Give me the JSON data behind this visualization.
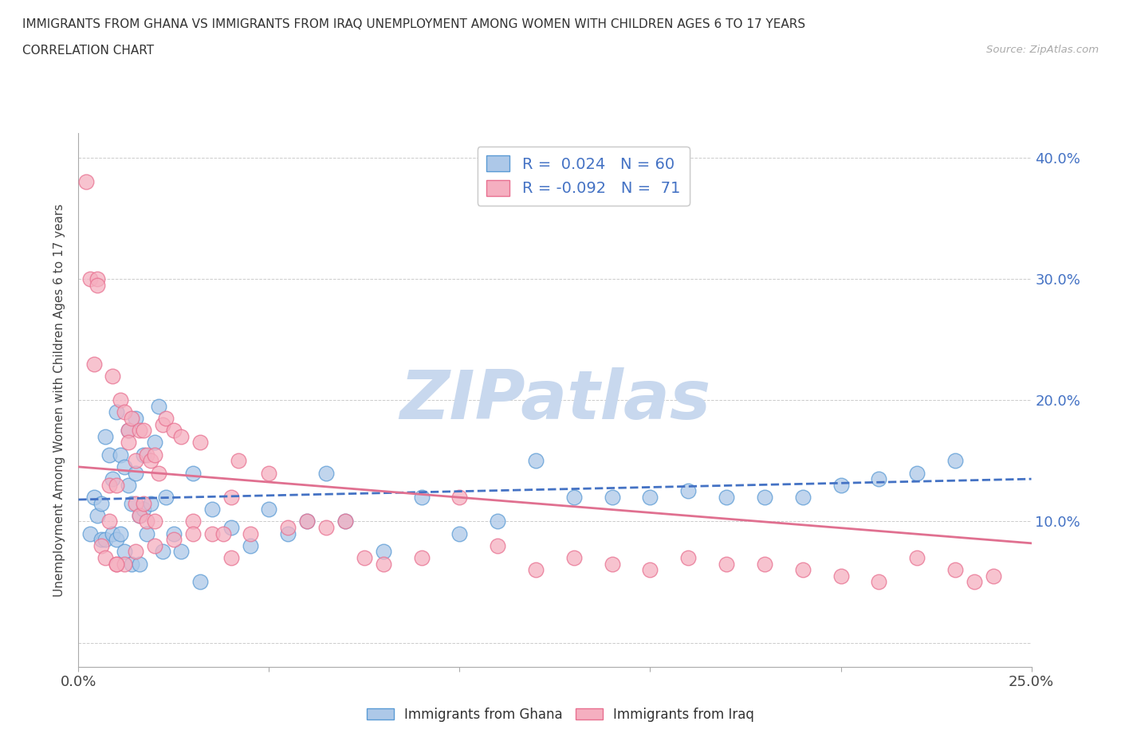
{
  "title_line1": "IMMIGRANTS FROM GHANA VS IMMIGRANTS FROM IRAQ UNEMPLOYMENT AMONG WOMEN WITH CHILDREN AGES 6 TO 17 YEARS",
  "title_line2": "CORRELATION CHART",
  "source_text": "Source: ZipAtlas.com",
  "ylabel": "Unemployment Among Women with Children Ages 6 to 17 years",
  "xlim": [
    0.0,
    0.25
  ],
  "ylim": [
    -0.02,
    0.42
  ],
  "yticks": [
    0.0,
    0.1,
    0.2,
    0.3,
    0.4
  ],
  "xticks": [
    0.0,
    0.05,
    0.1,
    0.15,
    0.2,
    0.25
  ],
  "ytick_labels": [
    "",
    "10.0%",
    "20.0%",
    "30.0%",
    "40.0%"
  ],
  "xtick_labels": [
    "0.0%",
    "",
    "",
    "",
    "",
    "25.0%"
  ],
  "ghana_color": "#adc8e8",
  "iraq_color": "#f5afc0",
  "ghana_edge_color": "#5b9bd5",
  "iraq_edge_color": "#e87090",
  "trend_ghana_color": "#4472c4",
  "trend_iraq_color": "#e07090",
  "tick_label_color": "#4472c4",
  "watermark_text": "ZIPatlas",
  "watermark_color": "#c8d8ee",
  "legend_R_ghana": "0.024",
  "legend_N_ghana": "60",
  "legend_R_iraq": "-0.092",
  "legend_N_iraq": "71",
  "ghana_x": [
    0.003,
    0.004,
    0.005,
    0.006,
    0.006,
    0.007,
    0.007,
    0.008,
    0.009,
    0.009,
    0.01,
    0.01,
    0.011,
    0.011,
    0.012,
    0.012,
    0.013,
    0.013,
    0.014,
    0.014,
    0.015,
    0.015,
    0.016,
    0.016,
    0.017,
    0.017,
    0.018,
    0.019,
    0.02,
    0.021,
    0.022,
    0.023,
    0.025,
    0.027,
    0.03,
    0.032,
    0.035,
    0.04,
    0.045,
    0.05,
    0.055,
    0.06,
    0.065,
    0.07,
    0.08,
    0.09,
    0.1,
    0.11,
    0.12,
    0.13,
    0.14,
    0.15,
    0.16,
    0.17,
    0.18,
    0.19,
    0.2,
    0.21,
    0.22,
    0.23
  ],
  "ghana_y": [
    0.09,
    0.12,
    0.105,
    0.115,
    0.085,
    0.17,
    0.085,
    0.155,
    0.135,
    0.09,
    0.19,
    0.085,
    0.155,
    0.09,
    0.145,
    0.075,
    0.175,
    0.13,
    0.115,
    0.065,
    0.185,
    0.14,
    0.105,
    0.065,
    0.155,
    0.11,
    0.09,
    0.115,
    0.165,
    0.195,
    0.075,
    0.12,
    0.09,
    0.075,
    0.14,
    0.05,
    0.11,
    0.095,
    0.08,
    0.11,
    0.09,
    0.1,
    0.14,
    0.1,
    0.075,
    0.12,
    0.09,
    0.1,
    0.15,
    0.12,
    0.12,
    0.12,
    0.125,
    0.12,
    0.12,
    0.12,
    0.13,
    0.135,
    0.14,
    0.15
  ],
  "iraq_x": [
    0.002,
    0.003,
    0.004,
    0.005,
    0.005,
    0.006,
    0.007,
    0.008,
    0.008,
    0.009,
    0.01,
    0.01,
    0.011,
    0.012,
    0.012,
    0.013,
    0.013,
    0.014,
    0.015,
    0.015,
    0.016,
    0.016,
    0.017,
    0.017,
    0.018,
    0.018,
    0.019,
    0.02,
    0.02,
    0.021,
    0.022,
    0.023,
    0.025,
    0.027,
    0.03,
    0.032,
    0.035,
    0.038,
    0.04,
    0.042,
    0.045,
    0.05,
    0.055,
    0.06,
    0.065,
    0.07,
    0.075,
    0.08,
    0.09,
    0.1,
    0.11,
    0.12,
    0.13,
    0.14,
    0.15,
    0.16,
    0.17,
    0.18,
    0.19,
    0.2,
    0.21,
    0.22,
    0.23,
    0.235,
    0.24,
    0.01,
    0.015,
    0.02,
    0.025,
    0.03,
    0.04
  ],
  "iraq_y": [
    0.38,
    0.3,
    0.23,
    0.3,
    0.295,
    0.08,
    0.07,
    0.13,
    0.1,
    0.22,
    0.13,
    0.065,
    0.2,
    0.19,
    0.065,
    0.175,
    0.165,
    0.185,
    0.15,
    0.115,
    0.175,
    0.105,
    0.175,
    0.115,
    0.155,
    0.1,
    0.15,
    0.155,
    0.1,
    0.14,
    0.18,
    0.185,
    0.175,
    0.17,
    0.1,
    0.165,
    0.09,
    0.09,
    0.12,
    0.15,
    0.09,
    0.14,
    0.095,
    0.1,
    0.095,
    0.1,
    0.07,
    0.065,
    0.07,
    0.12,
    0.08,
    0.06,
    0.07,
    0.065,
    0.06,
    0.07,
    0.065,
    0.065,
    0.06,
    0.055,
    0.05,
    0.07,
    0.06,
    0.05,
    0.055,
    0.065,
    0.075,
    0.08,
    0.085,
    0.09,
    0.07
  ],
  "ghana_trend_x": [
    0.0,
    0.25
  ],
  "ghana_trend_y": [
    0.118,
    0.135
  ],
  "iraq_trend_x": [
    0.0,
    0.25
  ],
  "iraq_trend_y": [
    0.145,
    0.082
  ]
}
